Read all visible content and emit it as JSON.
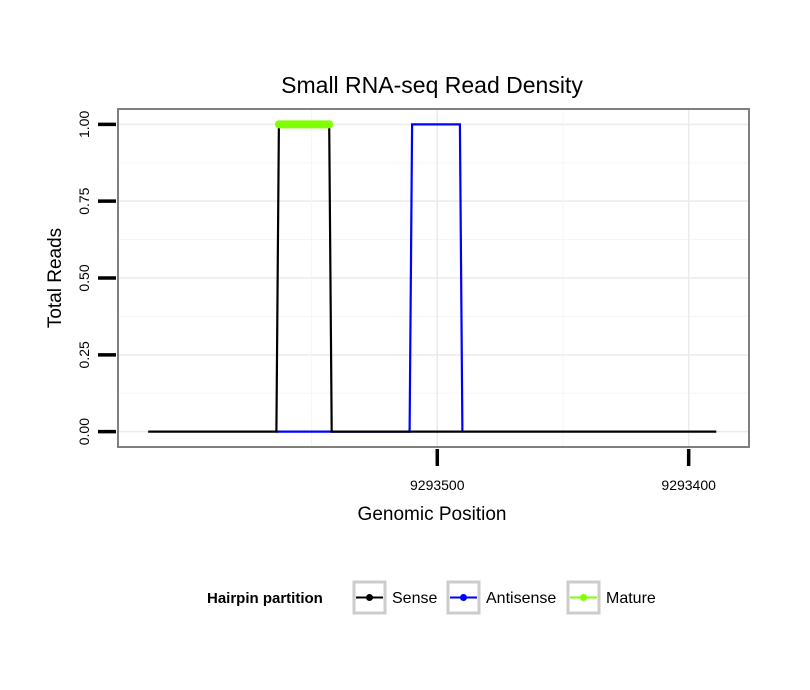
{
  "chart_data": {
    "type": "line",
    "title": "Small RNA-seq Read Density",
    "xlabel": "Genomic Position",
    "ylabel": "Total Reads",
    "x_reversed": true,
    "xlim": [
      9293627,
      9293376
    ],
    "ylim": [
      -0.05,
      1.05
    ],
    "x_ticks": [
      9293500,
      9293400
    ],
    "x_tick_labels": [
      "9293500",
      "9293400"
    ],
    "y_ticks": [
      0,
      0.25,
      0.5,
      0.75,
      1.0
    ],
    "y_tick_labels": [
      "0.00",
      "0.25",
      "0.50",
      "0.75",
      "1.00"
    ],
    "grid": true,
    "legend_position": "bottom",
    "legend_title": "Hairpin partition",
    "series": [
      {
        "name": "Sense",
        "color": "#000000",
        "x": [
          9293615,
          9293564,
          9293563,
          9293543,
          9293542,
          9293389
        ],
        "y": [
          0,
          0,
          1,
          1,
          0,
          0
        ]
      },
      {
        "name": "Antisense",
        "color": "#0000ff",
        "x": [
          9293564,
          9293542,
          9293511,
          9293510,
          9293491,
          9293490
        ],
        "y": [
          0,
          0,
          0,
          1,
          1,
          0
        ]
      },
      {
        "name": "Mature",
        "color": "#7fff00",
        "x": [
          9293563,
          9293543
        ],
        "y": [
          1,
          1
        ]
      }
    ]
  }
}
